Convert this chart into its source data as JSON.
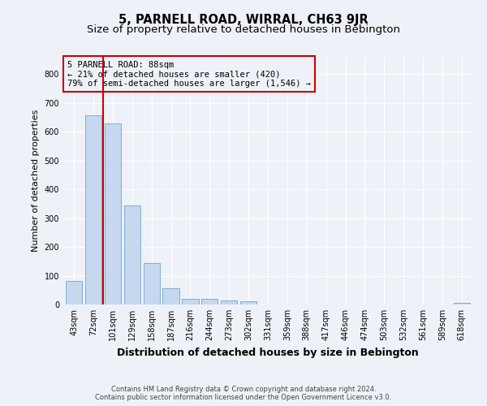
{
  "title": "5, PARNELL ROAD, WIRRAL, CH63 9JR",
  "subtitle": "Size of property relative to detached houses in Bebington",
  "xlabel": "Distribution of detached houses by size in Bebington",
  "ylabel": "Number of detached properties",
  "categories": [
    "43sqm",
    "72sqm",
    "101sqm",
    "129sqm",
    "158sqm",
    "187sqm",
    "216sqm",
    "244sqm",
    "273sqm",
    "302sqm",
    "331sqm",
    "359sqm",
    "388sqm",
    "417sqm",
    "446sqm",
    "474sqm",
    "503sqm",
    "532sqm",
    "561sqm",
    "589sqm",
    "618sqm"
  ],
  "values": [
    83,
    657,
    630,
    345,
    145,
    57,
    20,
    20,
    15,
    10,
    0,
    0,
    0,
    0,
    0,
    0,
    0,
    0,
    0,
    0,
    5
  ],
  "bar_color": "#c5d8f0",
  "bar_edge_color": "#7bafd4",
  "red_line_color": "#cc0000",
  "annotation_line1": "5 PARNELL ROAD: 88sqm",
  "annotation_line2": "← 21% of detached houses are smaller (420)",
  "annotation_line3": "79% of semi-detached houses are larger (1,546) →",
  "ylim": [
    0,
    860
  ],
  "yticks": [
    0,
    100,
    200,
    300,
    400,
    500,
    600,
    700,
    800
  ],
  "footer_line1": "Contains HM Land Registry data © Crown copyright and database right 2024.",
  "footer_line2": "Contains public sector information licensed under the Open Government Licence v3.0.",
  "background_color": "#eef2f8",
  "grid_color": "#ffffff",
  "title_fontsize": 10.5,
  "subtitle_fontsize": 9.5,
  "ylabel_fontsize": 8,
  "xlabel_fontsize": 9,
  "tick_fontsize": 7,
  "footer_fontsize": 6,
  "annot_fontsize": 7.5
}
